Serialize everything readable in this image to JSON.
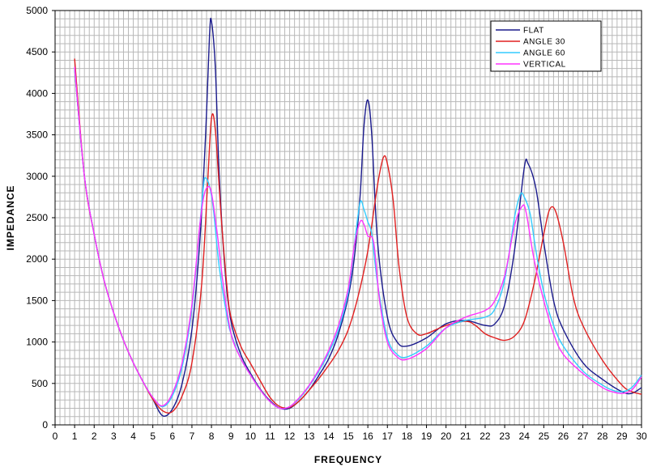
{
  "chart_data": {
    "type": "line",
    "xlabel": "FREQUENCY",
    "ylabel": "IMPEDANCE",
    "xlim": [
      0,
      30
    ],
    "ylim": [
      0,
      5000
    ],
    "x_ticks": [
      0,
      1,
      2,
      3,
      4,
      5,
      6,
      7,
      8,
      9,
      10,
      11,
      12,
      13,
      14,
      15,
      16,
      17,
      18,
      19,
      20,
      21,
      22,
      23,
      24,
      25,
      26,
      27,
      28,
      29,
      30
    ],
    "y_ticks": [
      0,
      500,
      1000,
      1500,
      2000,
      2500,
      3000,
      3500,
      4000,
      4500,
      5000
    ],
    "grid": true,
    "legend_position": "top-right",
    "series": [
      {
        "name": "FLAT",
        "color": "#1a1a8c",
        "points": [
          [
            1,
            4300
          ],
          [
            1.5,
            3000
          ],
          [
            2,
            2300
          ],
          [
            2.5,
            1750
          ],
          [
            3,
            1350
          ],
          [
            3.5,
            1020
          ],
          [
            4,
            750
          ],
          [
            4.5,
            520
          ],
          [
            5,
            310
          ],
          [
            5.5,
            110
          ],
          [
            6,
            190
          ],
          [
            6.5,
            500
          ],
          [
            7,
            1150
          ],
          [
            7.4,
            2200
          ],
          [
            7.7,
            3500
          ],
          [
            7.9,
            4700
          ],
          [
            8,
            4870
          ],
          [
            8.2,
            4300
          ],
          [
            8.4,
            3000
          ],
          [
            8.7,
            1850
          ],
          [
            9,
            1250
          ],
          [
            9.5,
            850
          ],
          [
            10,
            620
          ],
          [
            10.5,
            430
          ],
          [
            11,
            290
          ],
          [
            11.5,
            200
          ],
          [
            12,
            200
          ],
          [
            12.5,
            290
          ],
          [
            13,
            420
          ],
          [
            13.5,
            600
          ],
          [
            14,
            800
          ],
          [
            14.5,
            1100
          ],
          [
            15,
            1550
          ],
          [
            15.3,
            2000
          ],
          [
            15.6,
            2750
          ],
          [
            15.8,
            3600
          ],
          [
            16,
            3920
          ],
          [
            16.2,
            3500
          ],
          [
            16.5,
            2200
          ],
          [
            17,
            1300
          ],
          [
            17.5,
            1000
          ],
          [
            18,
            950
          ],
          [
            19,
            1050
          ],
          [
            20,
            1220
          ],
          [
            21,
            1260
          ],
          [
            22,
            1200
          ],
          [
            22.5,
            1220
          ],
          [
            23,
            1450
          ],
          [
            23.5,
            2100
          ],
          [
            24,
            3100
          ],
          [
            24.2,
            3150
          ],
          [
            24.6,
            2850
          ],
          [
            25,
            2200
          ],
          [
            25.5,
            1500
          ],
          [
            26,
            1150
          ],
          [
            27,
            750
          ],
          [
            28,
            550
          ],
          [
            29,
            400
          ],
          [
            29.5,
            380
          ],
          [
            30,
            450
          ]
        ]
      },
      {
        "name": "ANGLE 30",
        "color": "#e02020",
        "points": [
          [
            1,
            4420
          ],
          [
            1.5,
            3000
          ],
          [
            2,
            2300
          ],
          [
            2.5,
            1750
          ],
          [
            3,
            1350
          ],
          [
            3.5,
            1020
          ],
          [
            4,
            750
          ],
          [
            4.5,
            520
          ],
          [
            5,
            310
          ],
          [
            5.5,
            170
          ],
          [
            6,
            160
          ],
          [
            6.5,
            350
          ],
          [
            7,
            750
          ],
          [
            7.5,
            1700
          ],
          [
            7.8,
            2900
          ],
          [
            8,
            3700
          ],
          [
            8.2,
            3550
          ],
          [
            8.5,
            2500
          ],
          [
            8.8,
            1650
          ],
          [
            9,
            1300
          ],
          [
            9.5,
            950
          ],
          [
            10,
            740
          ],
          [
            10.5,
            530
          ],
          [
            11,
            330
          ],
          [
            11.5,
            220
          ],
          [
            12,
            210
          ],
          [
            12.5,
            290
          ],
          [
            13,
            420
          ],
          [
            13.5,
            560
          ],
          [
            14,
            720
          ],
          [
            14.5,
            900
          ],
          [
            15,
            1150
          ],
          [
            15.5,
            1550
          ],
          [
            16,
            2100
          ],
          [
            16.5,
            2900
          ],
          [
            16.8,
            3230
          ],
          [
            17,
            3150
          ],
          [
            17.3,
            2700
          ],
          [
            17.6,
            1900
          ],
          [
            18,
            1300
          ],
          [
            18.5,
            1100
          ],
          [
            19,
            1100
          ],
          [
            20,
            1200
          ],
          [
            21,
            1250
          ],
          [
            21.5,
            1200
          ],
          [
            22,
            1100
          ],
          [
            22.5,
            1050
          ],
          [
            23,
            1020
          ],
          [
            23.5,
            1070
          ],
          [
            24,
            1250
          ],
          [
            24.5,
            1700
          ],
          [
            25,
            2300
          ],
          [
            25.3,
            2600
          ],
          [
            25.6,
            2580
          ],
          [
            26,
            2200
          ],
          [
            26.5,
            1550
          ],
          [
            27,
            1200
          ],
          [
            28,
            780
          ],
          [
            29,
            480
          ],
          [
            29.5,
            400
          ],
          [
            30,
            370
          ]
        ]
      },
      {
        "name": "ANGLE 60",
        "color": "#33ccff",
        "points": [
          [
            1,
            4300
          ],
          [
            1.5,
            3000
          ],
          [
            2,
            2300
          ],
          [
            2.5,
            1750
          ],
          [
            3,
            1350
          ],
          [
            3.5,
            1020
          ],
          [
            4,
            750
          ],
          [
            4.5,
            520
          ],
          [
            5,
            330
          ],
          [
            5.5,
            220
          ],
          [
            6,
            350
          ],
          [
            6.5,
            700
          ],
          [
            7,
            1400
          ],
          [
            7.4,
            2400
          ],
          [
            7.6,
            2900
          ],
          [
            7.7,
            2980
          ],
          [
            7.9,
            2880
          ],
          [
            8.1,
            2600
          ],
          [
            8.4,
            1900
          ],
          [
            8.8,
            1300
          ],
          [
            9,
            1100
          ],
          [
            9.5,
            800
          ],
          [
            10,
            600
          ],
          [
            10.5,
            420
          ],
          [
            11,
            280
          ],
          [
            11.5,
            200
          ],
          [
            12,
            220
          ],
          [
            12.5,
            320
          ],
          [
            13,
            470
          ],
          [
            13.5,
            650
          ],
          [
            14,
            870
          ],
          [
            14.5,
            1150
          ],
          [
            15,
            1600
          ],
          [
            15.3,
            2150
          ],
          [
            15.6,
            2680
          ],
          [
            15.8,
            2600
          ],
          [
            16,
            2450
          ],
          [
            16.2,
            2300
          ],
          [
            16.5,
            1700
          ],
          [
            17,
            1050
          ],
          [
            17.5,
            850
          ],
          [
            18,
            820
          ],
          [
            19,
            950
          ],
          [
            20,
            1170
          ],
          [
            21,
            1260
          ],
          [
            22,
            1300
          ],
          [
            22.5,
            1400
          ],
          [
            23,
            1750
          ],
          [
            23.5,
            2500
          ],
          [
            23.8,
            2780
          ],
          [
            24,
            2750
          ],
          [
            24.3,
            2550
          ],
          [
            24.6,
            2100
          ],
          [
            25,
            1600
          ],
          [
            25.5,
            1200
          ],
          [
            26,
            950
          ],
          [
            27,
            650
          ],
          [
            28,
            480
          ],
          [
            28.5,
            420
          ],
          [
            29,
            400
          ],
          [
            29.5,
            450
          ],
          [
            30,
            600
          ]
        ]
      },
      {
        "name": "VERTICAL",
        "color": "#ff33ff",
        "points": [
          [
            1,
            4320
          ],
          [
            1.5,
            3000
          ],
          [
            2,
            2300
          ],
          [
            2.5,
            1750
          ],
          [
            3,
            1350
          ],
          [
            3.5,
            1020
          ],
          [
            4,
            750
          ],
          [
            4.5,
            520
          ],
          [
            5,
            330
          ],
          [
            5.5,
            230
          ],
          [
            6,
            380
          ],
          [
            6.5,
            750
          ],
          [
            7,
            1450
          ],
          [
            7.4,
            2400
          ],
          [
            7.6,
            2750
          ],
          [
            7.8,
            2870
          ],
          [
            8,
            2800
          ],
          [
            8.3,
            2300
          ],
          [
            8.6,
            1700
          ],
          [
            9,
            1100
          ],
          [
            9.5,
            800
          ],
          [
            10,
            600
          ],
          [
            10.5,
            420
          ],
          [
            11,
            280
          ],
          [
            11.5,
            200
          ],
          [
            12,
            220
          ],
          [
            12.5,
            330
          ],
          [
            13,
            480
          ],
          [
            13.5,
            670
          ],
          [
            14,
            900
          ],
          [
            14.5,
            1200
          ],
          [
            15,
            1650
          ],
          [
            15.3,
            2150
          ],
          [
            15.6,
            2450
          ],
          [
            15.8,
            2420
          ],
          [
            16,
            2280
          ],
          [
            16.3,
            2200
          ],
          [
            16.6,
            1500
          ],
          [
            17,
            1000
          ],
          [
            17.5,
            820
          ],
          [
            18,
            790
          ],
          [
            19,
            920
          ],
          [
            20,
            1170
          ],
          [
            21,
            1300
          ],
          [
            22,
            1380
          ],
          [
            22.5,
            1500
          ],
          [
            23,
            1800
          ],
          [
            23.5,
            2400
          ],
          [
            23.9,
            2640
          ],
          [
            24.1,
            2560
          ],
          [
            24.5,
            2000
          ],
          [
            25,
            1500
          ],
          [
            25.5,
            1100
          ],
          [
            26,
            850
          ],
          [
            27,
            620
          ],
          [
            28,
            450
          ],
          [
            28.5,
            400
          ],
          [
            29,
            380
          ],
          [
            29.5,
            420
          ],
          [
            30,
            580
          ]
        ]
      }
    ]
  }
}
